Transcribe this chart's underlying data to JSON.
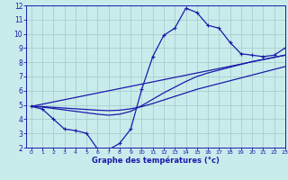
{
  "xlabel": "Graphe des températures (°c)",
  "xlim": [
    -0.5,
    23
  ],
  "ylim": [
    2,
    12
  ],
  "xticks": [
    0,
    1,
    2,
    3,
    4,
    5,
    6,
    7,
    8,
    9,
    10,
    11,
    12,
    13,
    14,
    15,
    16,
    17,
    18,
    19,
    20,
    21,
    22,
    23
  ],
  "yticks": [
    2,
    3,
    4,
    5,
    6,
    7,
    8,
    9,
    10,
    11,
    12
  ],
  "bg_color": "#c8ecec",
  "grid_color": "#aacccc",
  "line_color": "#1a1aaa",
  "line1_x": [
    0,
    1,
    2,
    3,
    4,
    5,
    6,
    7,
    8,
    9,
    10,
    11,
    12,
    13,
    14,
    15,
    16,
    17,
    18,
    19,
    20,
    21,
    22,
    23
  ],
  "line1_y": [
    4.9,
    4.7,
    4.0,
    3.3,
    3.2,
    3.0,
    1.9,
    1.85,
    2.3,
    3.3,
    6.1,
    8.4,
    9.9,
    10.4,
    11.8,
    11.5,
    10.6,
    10.4,
    9.4,
    8.6,
    8.5,
    8.4,
    8.5,
    9.0
  ],
  "line2_x": [
    0,
    23
  ],
  "line2_y": [
    4.9,
    8.5
  ],
  "line3_x": [
    0,
    1,
    2,
    3,
    4,
    5,
    6,
    7,
    8,
    9,
    10,
    11,
    12,
    13,
    14,
    15,
    16,
    17,
    18,
    19,
    20,
    21,
    22,
    23
  ],
  "line3_y": [
    4.9,
    4.85,
    4.75,
    4.65,
    4.55,
    4.45,
    4.35,
    4.28,
    4.35,
    4.55,
    4.95,
    5.4,
    5.85,
    6.25,
    6.65,
    7.0,
    7.25,
    7.45,
    7.65,
    7.85,
    8.05,
    8.2,
    8.35,
    8.5
  ],
  "line4_x": [
    0,
    1,
    2,
    3,
    4,
    5,
    6,
    7,
    8,
    9,
    10,
    11,
    12,
    13,
    14,
    15,
    16,
    17,
    18,
    19,
    20,
    21,
    22,
    23
  ],
  "line4_y": [
    4.9,
    4.88,
    4.83,
    4.78,
    4.73,
    4.68,
    4.63,
    4.6,
    4.63,
    4.73,
    4.88,
    5.1,
    5.35,
    5.6,
    5.85,
    6.1,
    6.3,
    6.5,
    6.7,
    6.9,
    7.1,
    7.3,
    7.5,
    7.7
  ]
}
